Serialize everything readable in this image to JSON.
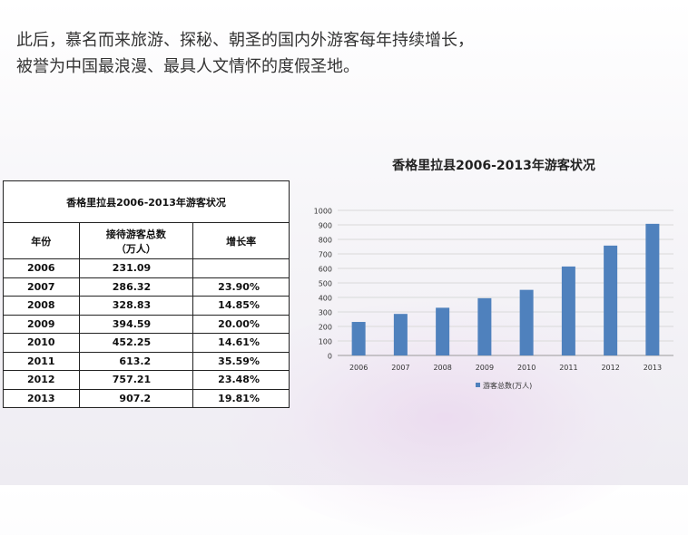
{
  "intro": {
    "line1": "此后，慕名而来旅游、探秘、朝圣的国内外游客每年持续增长，",
    "line2": "被誉为中国最浪漫、最具人文情怀的度假圣地。"
  },
  "table": {
    "title": "香格里拉县2006-2013年游客状况",
    "headers": {
      "year": "年份",
      "total_line1": "接待游客总数",
      "total_line2": "（万人）",
      "rate": "增长率"
    },
    "rows": [
      {
        "year": "2006",
        "total": "231.09",
        "rate": ""
      },
      {
        "year": "2007",
        "total": "286.32",
        "rate": "23.90%"
      },
      {
        "year": "2008",
        "total": "328.83",
        "rate": "14.85%"
      },
      {
        "year": "2009",
        "total": "394.59",
        "rate": "20.00%"
      },
      {
        "year": "2010",
        "total": "452.25",
        "rate": "14.61%"
      },
      {
        "year": "2011",
        "total": "613.2",
        "rate": "35.59%"
      },
      {
        "year": "2012",
        "total": "757.21",
        "rate": "23.48%"
      },
      {
        "year": "2013",
        "total": "907.2",
        "rate": "19.81%"
      }
    ]
  },
  "chart_data": {
    "type": "bar",
    "title": "香格里拉县2006-2013年游客状况",
    "categories": [
      "2006",
      "2007",
      "2008",
      "2009",
      "2010",
      "2011",
      "2012",
      "2013"
    ],
    "series": [
      {
        "name": "游客总数(万人)",
        "values": [
          231.09,
          286.32,
          328.83,
          394.59,
          452.25,
          613.2,
          757.21,
          907.2
        ],
        "color": "#4f81bd"
      }
    ],
    "ylim": [
      0,
      1000
    ],
    "yticks": [
      0,
      100,
      200,
      300,
      400,
      500,
      600,
      700,
      800,
      900,
      1000
    ],
    "grid": true,
    "legend": "bottom"
  }
}
